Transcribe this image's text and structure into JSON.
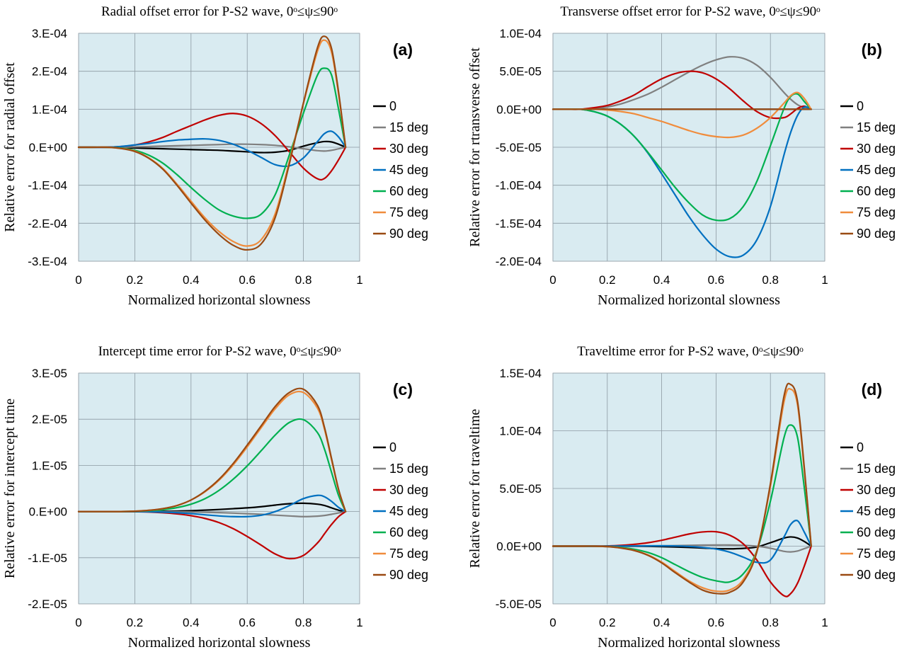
{
  "chart_data": [
    {
      "type": "line",
      "panel": "(a)",
      "title": "Radial offset error for P-S2 wave, 0ᵒ≤ψ≤90ᵒ",
      "xlabel": "Normalized horizontal slowness",
      "ylabel": "Relative error for radial offset",
      "xlim": [
        0,
        1
      ],
      "ylim": [
        -0.0003,
        0.0003
      ],
      "xticks": [
        0,
        0.2,
        0.4,
        0.6,
        0.8,
        1
      ],
      "xtick_labels": [
        "0",
        "0.2",
        "0.4",
        "0.6",
        "0.8",
        "1"
      ],
      "yticks": [
        -0.0003,
        -0.0002,
        -0.0001,
        0,
        0.0001,
        0.0002,
        0.0003
      ],
      "ytick_labels": [
        "-3.E-04",
        "-2.E-04",
        "-1.E-04",
        "0.E+00",
        "1.E-04",
        "2.E-04",
        "3.E-04"
      ],
      "grid": true,
      "legend_position": "right",
      "x": [
        0,
        0.05,
        0.1,
        0.15,
        0.2,
        0.25,
        0.3,
        0.35,
        0.4,
        0.45,
        0.5,
        0.55,
        0.6,
        0.65,
        0.7,
        0.75,
        0.8,
        0.85,
        0.875,
        0.9,
        0.925,
        0.95
      ],
      "series": [
        {
          "name": "0",
          "color": "#000000",
          "values": [
            0,
            0,
            0,
            -1e-06,
            -2e-06,
            -3e-06,
            -4e-06,
            -5e-06,
            -6e-06,
            -7e-06,
            -8e-06,
            -1e-05,
            -1.2e-05,
            -1.4e-05,
            -1.3e-05,
            -8e-06,
            3e-06,
            1.2e-05,
            1.5e-05,
            1.4e-05,
            8e-06,
            0
          ]
        },
        {
          "name": "15 deg",
          "color": "#808080",
          "values": [
            0,
            0,
            0,
            0,
            1e-06,
            2e-06,
            3e-06,
            4e-06,
            5e-06,
            6e-06,
            7e-06,
            8e-06,
            8e-06,
            7e-06,
            5e-06,
            1e-06,
            -4e-06,
            -9e-06,
            -1e-05,
            -8e-06,
            -4e-06,
            0
          ]
        },
        {
          "name": "30 deg",
          "color": "#c00000",
          "values": [
            0,
            0,
            0,
            2e-06,
            6e-06,
            1.4e-05,
            2.6e-05,
            4.2e-05,
            5.7e-05,
            7.2e-05,
            8.4e-05,
            8.9e-05,
            8.2e-05,
            6.2e-05,
            3e-05,
            -1.2e-05,
            -5.5e-05,
            -8.3e-05,
            -8.2e-05,
            -6.2e-05,
            -3.3e-05,
            0
          ]
        },
        {
          "name": "45 deg",
          "color": "#0070c0",
          "values": [
            0,
            0,
            0,
            2e-06,
            6e-06,
            1e-05,
            1.5e-05,
            1.9e-05,
            2.1e-05,
            2.2e-05,
            1.8e-05,
            8e-06,
            -8e-06,
            -2.7e-05,
            -4.6e-05,
            -4.9e-05,
            -2.8e-05,
            1.5e-05,
            3.6e-05,
            4.2e-05,
            2.7e-05,
            0
          ]
        },
        {
          "name": "60 deg",
          "color": "#00b050",
          "values": [
            0,
            0,
            0,
            -2e-06,
            -8e-06,
            -2.1e-05,
            -4.2e-05,
            -7.2e-05,
            -0.000106,
            -0.000138,
            -0.000165,
            -0.000181,
            -0.000187,
            -0.000176,
            -0.000124,
            -2e-05,
            9e-05,
            0.00019,
            0.000208,
            0.00019,
            0.0001,
            0
          ]
        },
        {
          "name": "75 deg",
          "color": "#f08c3c",
          "values": [
            0,
            0,
            0,
            -3e-06,
            -1e-05,
            -2.8e-05,
            -5.6e-05,
            -9.7e-05,
            -0.000142,
            -0.000186,
            -0.000222,
            -0.000248,
            -0.00026,
            -0.000243,
            -0.000174,
            -3.7e-05,
            0.000115,
            0.000253,
            0.000282,
            0.00025,
            0.00014,
            0
          ]
        },
        {
          "name": "90 deg",
          "color": "#9a4a12",
          "values": [
            0,
            0,
            0,
            -3e-06,
            -1.1e-05,
            -2.9e-05,
            -5.8e-05,
            -0.0001,
            -0.000147,
            -0.000192,
            -0.00023,
            -0.000258,
            -0.00027,
            -0.000254,
            -0.000184,
            -4.3e-05,
            0.000117,
            0.000262,
            0.000292,
            0.00026,
            0.000145,
            0
          ]
        }
      ]
    },
    {
      "type": "line",
      "panel": "(b)",
      "title": "Transverse offset error for P-S2 wave, 0ᵒ≤ψ≤90ᵒ",
      "xlabel": "Normalized horizontal slowness",
      "ylabel": "Relative error for rtransverse offset",
      "xlim": [
        0,
        1
      ],
      "ylim": [
        -0.0002,
        0.0001
      ],
      "xticks": [
        0,
        0.2,
        0.4,
        0.6,
        0.8,
        1
      ],
      "xtick_labels": [
        "0",
        "0.2",
        "0.4",
        "0.6",
        "0.8",
        "1"
      ],
      "yticks": [
        -0.0002,
        -0.00015,
        -0.0001,
        -5e-05,
        0,
        5e-05,
        0.0001
      ],
      "ytick_labels": [
        "-2.0E-04",
        "-1.5E-04",
        "-1.0E-04",
        "-5.0E-05",
        "0.0E+00",
        "5.0E-05",
        "1.0E-04"
      ],
      "grid": true,
      "legend_position": "right",
      "x": [
        0,
        0.05,
        0.1,
        0.15,
        0.2,
        0.25,
        0.3,
        0.35,
        0.4,
        0.45,
        0.5,
        0.55,
        0.6,
        0.65,
        0.7,
        0.75,
        0.8,
        0.85,
        0.875,
        0.9,
        0.925,
        0.95
      ],
      "series": [
        {
          "name": "0",
          "color": "#000000",
          "values": [
            0,
            0,
            0,
            0,
            0,
            0,
            0,
            0,
            0,
            0,
            0,
            0,
            0,
            0,
            0,
            0,
            0,
            0,
            0,
            0,
            0,
            0
          ]
        },
        {
          "name": "15 deg",
          "color": "#808080",
          "values": [
            0,
            0,
            0,
            1e-06,
            3e-06,
            7e-06,
            1.3e-05,
            2e-05,
            2.9e-05,
            3.9e-05,
            4.9e-05,
            5.8e-05,
            6.5e-05,
            6.9e-05,
            6.7e-05,
            5.8e-05,
            4.2e-05,
            2.2e-05,
            1.3e-05,
            6e-06,
            2e-06,
            0
          ]
        },
        {
          "name": "30 deg",
          "color": "#c00000",
          "values": [
            0,
            0,
            0,
            2e-06,
            5e-06,
            1.1e-05,
            1.9e-05,
            3e-05,
            4e-05,
            4.7e-05,
            5e-05,
            4.8e-05,
            4e-05,
            2.7e-05,
            1.1e-05,
            -3e-06,
            -1.1e-05,
            -1.1e-05,
            -6e-06,
            1e-06,
            4e-06,
            0
          ]
        },
        {
          "name": "45 deg",
          "color": "#0070c0",
          "values": [
            0,
            0,
            0,
            -3e-06,
            -9e-06,
            -2e-05,
            -3.6e-05,
            -5.8e-05,
            -8.5e-05,
            -0.000113,
            -0.000141,
            -0.000165,
            -0.000184,
            -0.000194,
            -0.000192,
            -0.000172,
            -0.000128,
            -6e-05,
            -3e-05,
            -8e-06,
            3e-06,
            0
          ]
        },
        {
          "name": "60 deg",
          "color": "#00b050",
          "values": [
            0,
            0,
            0,
            -3e-06,
            -9e-06,
            -2e-05,
            -3.6e-05,
            -5.7e-05,
            -8e-05,
            -0.000103,
            -0.000123,
            -0.000139,
            -0.000146,
            -0.000144,
            -0.000128,
            -9.5e-05,
            -4.8e-05,
            1e-06,
            1.7e-05,
            2e-05,
            1e-05,
            0
          ]
        },
        {
          "name": "75 deg",
          "color": "#f08c3c",
          "values": [
            0,
            0,
            0,
            0,
            -1e-06,
            -3e-06,
            -6e-06,
            -1.1e-05,
            -1.6e-05,
            -2.2e-05,
            -2.8e-05,
            -3.3e-05,
            -3.6e-05,
            -3.7e-05,
            -3.4e-05,
            -2.5e-05,
            -1.1e-05,
            8e-06,
            1.8e-05,
            2.2e-05,
            1.4e-05,
            0
          ]
        },
        {
          "name": "90 deg",
          "color": "#9a4a12",
          "values": [
            0,
            0,
            0,
            0,
            0,
            0,
            0,
            0,
            0,
            0,
            0,
            0,
            0,
            0,
            0,
            0,
            0,
            0,
            0,
            0,
            0,
            0
          ]
        }
      ]
    },
    {
      "type": "line",
      "panel": "(c)",
      "title": "Intercept time error for P-S2 wave, 0ᵒ≤ψ≤90ᵒ",
      "xlabel": "Normalized horizontal slowness",
      "ylabel": "Relative error for intercept time",
      "xlim": [
        0,
        1
      ],
      "ylim": [
        -2e-05,
        3e-05
      ],
      "xticks": [
        0,
        0.2,
        0.4,
        0.6,
        0.8,
        1
      ],
      "xtick_labels": [
        "0",
        "0.2",
        "0.4",
        "0.6",
        "0.8",
        "1"
      ],
      "yticks": [
        -2e-05,
        -1e-05,
        0,
        1e-05,
        2e-05,
        3e-05
      ],
      "ytick_labels": [
        "-2.E-05",
        "-1.E-05",
        "0.E+00",
        "1.E-05",
        "2.E-05",
        "3.E-05"
      ],
      "grid": true,
      "legend_position": "right",
      "x": [
        0,
        0.05,
        0.1,
        0.15,
        0.2,
        0.25,
        0.3,
        0.35,
        0.4,
        0.45,
        0.5,
        0.55,
        0.6,
        0.65,
        0.7,
        0.75,
        0.8,
        0.85,
        0.875,
        0.9,
        0.925,
        0.95
      ],
      "series": [
        {
          "name": "0",
          "color": "#000000",
          "values": [
            0,
            0,
            0,
            0,
            0,
            2e-08,
            5e-08,
            1e-07,
            1.8e-07,
            3e-07,
            4.5e-07,
            6.2e-07,
            8e-07,
            1.05e-06,
            1.4e-06,
            1.7e-06,
            1.8e-06,
            1.6e-06,
            1.3e-06,
            8e-07,
            3e-07,
            0
          ]
        },
        {
          "name": "15 deg",
          "color": "#808080",
          "values": [
            0,
            0,
            0,
            0,
            0,
            -1e-08,
            -3e-08,
            -6e-08,
            -1e-07,
            -1.6e-07,
            -2.4e-07,
            -3.4e-07,
            -4.6e-07,
            -6e-07,
            -7.8e-07,
            -9.5e-07,
            -1.1e-06,
            -1e-06,
            -8.5e-07,
            -6e-07,
            -3e-07,
            0
          ]
        },
        {
          "name": "30 deg",
          "color": "#c00000",
          "values": [
            0,
            0,
            0,
            0,
            -3e-08,
            -1e-07,
            -2.5e-07,
            -5e-07,
            -9e-07,
            -1.5e-06,
            -2.4e-06,
            -3.7e-06,
            -5.4e-06,
            -7.3e-06,
            -9.2e-06,
            -1.02e-05,
            -9.5e-06,
            -6.8e-06,
            -4.8e-06,
            -2.8e-06,
            -1.1e-06,
            0
          ]
        },
        {
          "name": "45 deg",
          "color": "#0070c0",
          "values": [
            0,
            0,
            0,
            0,
            -1e-08,
            -5e-08,
            -1.2e-07,
            -2.5e-07,
            -4.5e-07,
            -7e-07,
            -9.5e-07,
            -1.1e-06,
            -1.1e-06,
            -8e-07,
            0,
            1.3e-06,
            2.8e-06,
            3.5e-06,
            3.2e-06,
            2.2e-06,
            9e-07,
            0
          ]
        },
        {
          "name": "60 deg",
          "color": "#00b050",
          "values": [
            0,
            0,
            0,
            0,
            5e-08,
            1.8e-07,
            4e-07,
            8.5e-07,
            1.6e-06,
            2.8e-06,
            4.6e-06,
            7e-06,
            9.9e-06,
            1.32e-05,
            1.66e-05,
            1.93e-05,
            1.99e-05,
            1.71e-05,
            1.35e-05,
            8.5e-06,
            3.5e-06,
            0
          ]
        },
        {
          "name": "75 deg",
          "color": "#f08c3c",
          "values": [
            0,
            0,
            0,
            0,
            8e-08,
            2.6e-07,
            6.2e-07,
            1.3e-06,
            2.5e-06,
            4.3e-06,
            6.8e-06,
            1.01e-05,
            1.4e-05,
            1.82e-05,
            2.23e-05,
            2.53e-05,
            2.58e-05,
            2.24e-05,
            1.78e-05,
            1.12e-05,
            4.7e-06,
            0
          ]
        },
        {
          "name": "90 deg",
          "color": "#9a4a12",
          "values": [
            0,
            0,
            0,
            0,
            8e-08,
            2.7e-07,
            6.4e-07,
            1.3e-06,
            2.5e-06,
            4.4e-06,
            7e-06,
            1.04e-05,
            1.44e-05,
            1.86e-05,
            2.28e-05,
            2.58e-05,
            2.65e-05,
            2.3e-05,
            1.82e-05,
            1.15e-05,
            4.8e-06,
            0
          ]
        }
      ]
    },
    {
      "type": "line",
      "panel": "(d)",
      "title": "Traveltime error for P-S2 wave, 0ᵒ≤ψ≤90ᵒ",
      "xlabel": "Normalized horizontal slowness",
      "ylabel": "Relative error for traveltime",
      "xlim": [
        0,
        1
      ],
      "ylim": [
        -5e-05,
        0.00015
      ],
      "xticks": [
        0,
        0.2,
        0.4,
        0.6,
        0.8,
        1
      ],
      "xtick_labels": [
        "0",
        "0.2",
        "0.4",
        "0.6",
        "0.8",
        "1"
      ],
      "yticks": [
        -5e-05,
        0,
        5e-05,
        0.0001,
        0.00015
      ],
      "ytick_labels": [
        "-5.0E-05",
        "0.0E+00",
        "5.0E-05",
        "1.0E-04",
        "1.5E-04"
      ],
      "grid": true,
      "legend_position": "right",
      "x": [
        0,
        0.05,
        0.1,
        0.15,
        0.2,
        0.25,
        0.3,
        0.35,
        0.4,
        0.45,
        0.5,
        0.55,
        0.6,
        0.65,
        0.7,
        0.75,
        0.8,
        0.85,
        0.875,
        0.9,
        0.925,
        0.95
      ],
      "series": [
        {
          "name": "0",
          "color": "#000000",
          "values": [
            0,
            0,
            0,
            0,
            0,
            0,
            -1e-07,
            -2e-07,
            -4e-07,
            -7e-07,
            -1.1e-06,
            -1.6e-06,
            -2.1e-06,
            -2.3e-06,
            -1.9e-06,
            -7e-07,
            3e-06,
            7e-06,
            8e-06,
            7e-06,
            4e-06,
            0
          ]
        },
        {
          "name": "15 deg",
          "color": "#808080",
          "values": [
            0,
            0,
            0,
            0,
            0,
            0,
            1e-07,
            2e-07,
            3e-07,
            5e-07,
            7e-07,
            9e-07,
            1e-06,
            1e-06,
            7e-07,
            0,
            -1.8e-06,
            -4.5e-06,
            -5e-06,
            -4.2e-06,
            -2.1e-06,
            0
          ]
        },
        {
          "name": "30 deg",
          "color": "#c00000",
          "values": [
            0,
            0,
            0,
            0,
            2e-07,
            7e-07,
            1.6e-06,
            3e-06,
            5.1e-06,
            7.8e-06,
            1.05e-05,
            1.23e-05,
            1.25e-05,
            9.5e-06,
            2e-06,
            -1.2e-05,
            -3.1e-05,
            -4.3e-05,
            -4.1e-05,
            -3.2e-05,
            -1.7e-05,
            0
          ]
        },
        {
          "name": "45 deg",
          "color": "#0070c0",
          "values": [
            0,
            0,
            0,
            0,
            0,
            1e-07,
            2e-07,
            3e-07,
            3e-07,
            2e-07,
            -2e-07,
            -1.1e-06,
            -2.5e-06,
            -5.2e-06,
            -9.5e-06,
            -1.4e-05,
            -1.2e-05,
            8e-06,
            1.9e-05,
            2.2e-05,
            1.2e-05,
            0
          ]
        },
        {
          "name": "60 deg",
          "color": "#00b050",
          "values": [
            0,
            0,
            0,
            0,
            -3e-07,
            -1.1e-06,
            -2.7e-06,
            -5.5e-06,
            -1e-05,
            -1.6e-05,
            -2.2e-05,
            -2.7e-05,
            -3e-05,
            -3.1e-05,
            -2.4e-05,
            -4e-06,
            3.9e-05,
            9.4e-05,
            0.000105,
            9.4e-05,
            5e-05,
            0
          ]
        },
        {
          "name": "75 deg",
          "color": "#f08c3c",
          "values": [
            0,
            0,
            0,
            0,
            -4e-07,
            -1.5e-06,
            -3.7e-06,
            -7.6e-06,
            -1.38e-05,
            -2.2e-05,
            -3e-05,
            -3.6e-05,
            -3.9e-05,
            -3.8e-05,
            -2.9e-05,
            -4e-06,
            5.2e-05,
            0.000125,
            0.000136,
            0.000122,
            6.5e-05,
            0
          ]
        },
        {
          "name": "90 deg",
          "color": "#9a4a12",
          "values": [
            0,
            0,
            0,
            0,
            -4e-07,
            -1.6e-06,
            -3.9e-06,
            -8e-06,
            -1.45e-05,
            -2.3e-05,
            -3.1e-05,
            -3.8e-05,
            -4.1e-05,
            -4e-05,
            -3.1e-05,
            -5e-06,
            5.4e-05,
            0.00013,
            0.00014,
            0.000125,
            6.7e-05,
            0
          ]
        }
      ]
    }
  ]
}
